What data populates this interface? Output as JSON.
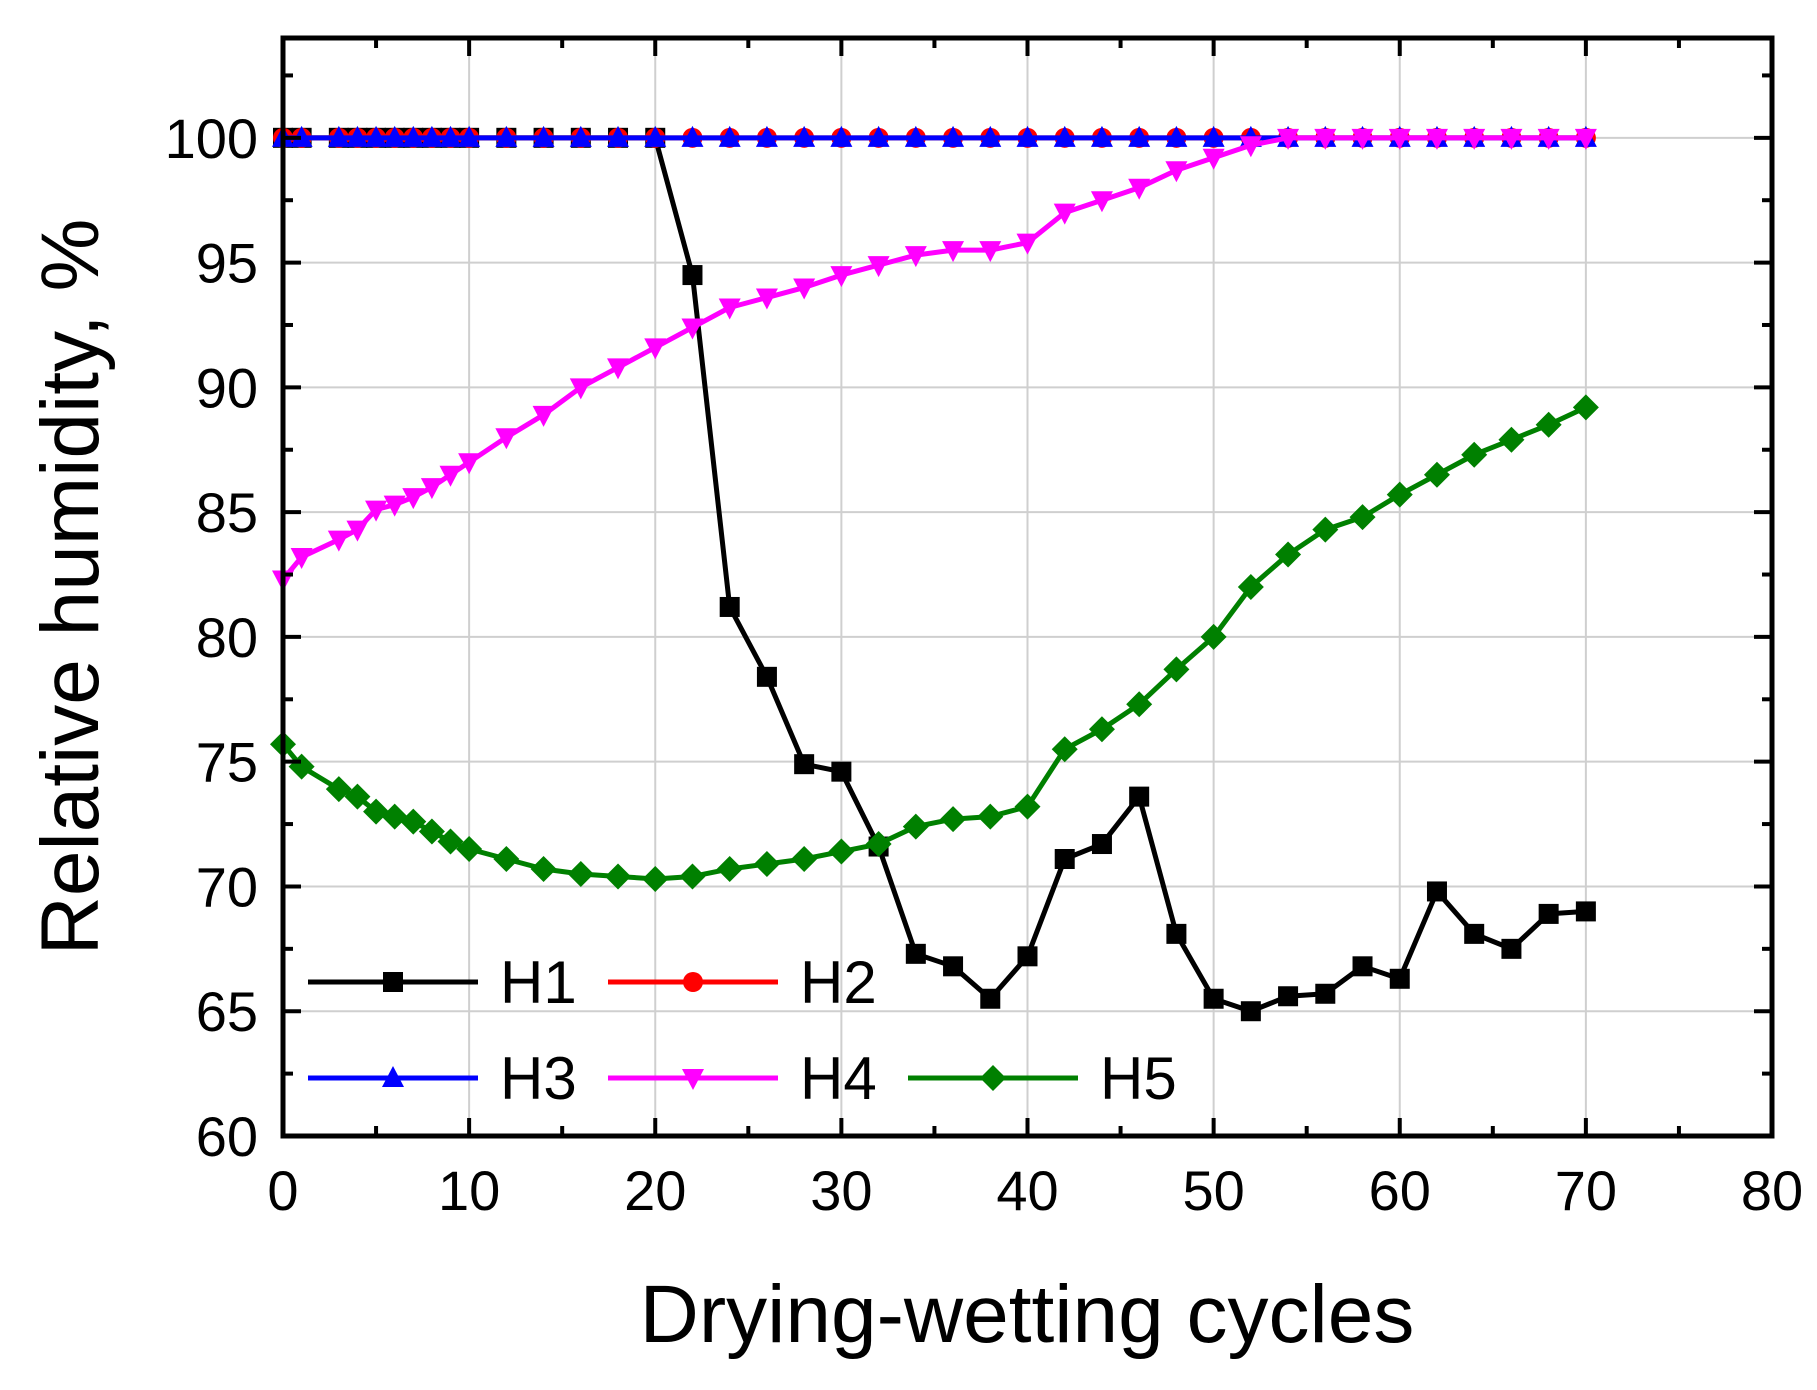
{
  "chart_data": {
    "type": "line",
    "xlabel": "Drying-wetting cycles",
    "ylabel": "Relative humidity, %",
    "xlim": [
      0,
      80
    ],
    "ylim": [
      60,
      104
    ],
    "xticks": [
      0,
      10,
      20,
      30,
      40,
      50,
      60,
      70,
      80
    ],
    "yticks": [
      60,
      65,
      70,
      75,
      80,
      85,
      90,
      95,
      100
    ],
    "xtick_labels": [
      "0",
      "10",
      "20",
      "30",
      "40",
      "50",
      "60",
      "70",
      "80"
    ],
    "ytick_labels": [
      "60",
      "65",
      "70",
      "75",
      "80",
      "85",
      "90",
      "95",
      "100"
    ],
    "grid": true,
    "legend_position": "bottom-left",
    "series": [
      {
        "name": "H1",
        "color": "#000000",
        "marker": "square",
        "points": [
          [
            0,
            100
          ],
          [
            1,
            100
          ],
          [
            3,
            100
          ],
          [
            4,
            100
          ],
          [
            5,
            100
          ],
          [
            6,
            100
          ],
          [
            7,
            100
          ],
          [
            8,
            100
          ],
          [
            9,
            100
          ],
          [
            10,
            100
          ],
          [
            12,
            100
          ],
          [
            14,
            100
          ],
          [
            16,
            100
          ],
          [
            18,
            100
          ],
          [
            20,
            100
          ],
          [
            22,
            94.5
          ],
          [
            24,
            81.2
          ],
          [
            26,
            78.4
          ],
          [
            28,
            74.9
          ],
          [
            30,
            74.6
          ],
          [
            32,
            71.6
          ],
          [
            34,
            67.3
          ],
          [
            36,
            66.8
          ],
          [
            38,
            65.5
          ],
          [
            40,
            67.2
          ],
          [
            42,
            71.1
          ],
          [
            44,
            71.7
          ],
          [
            46,
            73.6
          ],
          [
            48,
            68.1
          ],
          [
            50,
            65.5
          ],
          [
            52,
            65
          ],
          [
            54,
            65.6
          ],
          [
            56,
            65.7
          ],
          [
            58,
            66.8
          ],
          [
            60,
            66.3
          ],
          [
            62,
            69.8
          ],
          [
            64,
            68.1
          ],
          [
            66,
            67.5
          ],
          [
            68,
            68.9
          ],
          [
            70,
            69
          ]
        ]
      },
      {
        "name": "H2",
        "color": "#ff0000",
        "marker": "circle",
        "points": [
          [
            0,
            100
          ],
          [
            1,
            100
          ],
          [
            3,
            100
          ],
          [
            4,
            100
          ],
          [
            5,
            100
          ],
          [
            6,
            100
          ],
          [
            7,
            100
          ],
          [
            8,
            100
          ],
          [
            9,
            100
          ],
          [
            10,
            100
          ],
          [
            12,
            100
          ],
          [
            14,
            100
          ],
          [
            16,
            100
          ],
          [
            18,
            100
          ],
          [
            20,
            100
          ],
          [
            22,
            100
          ],
          [
            24,
            100
          ],
          [
            26,
            100
          ],
          [
            28,
            100
          ],
          [
            30,
            100
          ],
          [
            32,
            100
          ],
          [
            34,
            100
          ],
          [
            36,
            100
          ],
          [
            38,
            100
          ],
          [
            40,
            100
          ],
          [
            42,
            100
          ],
          [
            44,
            100
          ],
          [
            46,
            100
          ],
          [
            48,
            100
          ],
          [
            50,
            100
          ],
          [
            52,
            100
          ],
          [
            54,
            100
          ],
          [
            56,
            100
          ],
          [
            58,
            100
          ],
          [
            60,
            100
          ],
          [
            62,
            100
          ],
          [
            64,
            100
          ],
          [
            66,
            100
          ],
          [
            68,
            100
          ],
          [
            70,
            100
          ]
        ]
      },
      {
        "name": "H3",
        "color": "#0000ff",
        "marker": "triangle-up",
        "points": [
          [
            0,
            100
          ],
          [
            1,
            100
          ],
          [
            3,
            100
          ],
          [
            4,
            100
          ],
          [
            5,
            100
          ],
          [
            6,
            100
          ],
          [
            7,
            100
          ],
          [
            8,
            100
          ],
          [
            9,
            100
          ],
          [
            10,
            100
          ],
          [
            12,
            100
          ],
          [
            14,
            100
          ],
          [
            16,
            100
          ],
          [
            18,
            100
          ],
          [
            20,
            100
          ],
          [
            22,
            100
          ],
          [
            24,
            100
          ],
          [
            26,
            100
          ],
          [
            28,
            100
          ],
          [
            30,
            100
          ],
          [
            32,
            100
          ],
          [
            34,
            100
          ],
          [
            36,
            100
          ],
          [
            38,
            100
          ],
          [
            40,
            100
          ],
          [
            42,
            100
          ],
          [
            44,
            100
          ],
          [
            46,
            100
          ],
          [
            48,
            100
          ],
          [
            50,
            100
          ],
          [
            52,
            100
          ],
          [
            54,
            100
          ],
          [
            56,
            100
          ],
          [
            58,
            100
          ],
          [
            60,
            100
          ],
          [
            62,
            100
          ],
          [
            64,
            100
          ],
          [
            66,
            100
          ],
          [
            68,
            100
          ],
          [
            70,
            100
          ]
        ]
      },
      {
        "name": "H4",
        "color": "#ff00ff",
        "marker": "triangle-down",
        "points": [
          [
            0,
            82.3
          ],
          [
            1,
            83.2
          ],
          [
            3,
            83.9
          ],
          [
            4,
            84.3
          ],
          [
            5,
            85.1
          ],
          [
            6,
            85.3
          ],
          [
            7,
            85.6
          ],
          [
            8,
            86
          ],
          [
            9,
            86.5
          ],
          [
            10,
            87
          ],
          [
            12,
            88
          ],
          [
            14,
            88.9
          ],
          [
            16,
            90
          ],
          [
            18,
            90.8
          ],
          [
            20,
            91.6
          ],
          [
            22,
            92.4
          ],
          [
            24,
            93.2
          ],
          [
            26,
            93.6
          ],
          [
            28,
            94
          ],
          [
            30,
            94.5
          ],
          [
            32,
            94.9
          ],
          [
            34,
            95.3
          ],
          [
            36,
            95.5
          ],
          [
            38,
            95.5
          ],
          [
            40,
            95.8
          ],
          [
            42,
            97
          ],
          [
            44,
            97.5
          ],
          [
            46,
            98
          ],
          [
            48,
            98.7
          ],
          [
            50,
            99.2
          ],
          [
            52,
            99.7
          ],
          [
            54,
            100
          ],
          [
            56,
            100
          ],
          [
            58,
            100
          ],
          [
            60,
            100
          ],
          [
            62,
            100
          ],
          [
            64,
            100
          ],
          [
            66,
            100
          ],
          [
            68,
            100
          ],
          [
            70,
            100
          ]
        ]
      },
      {
        "name": "H5",
        "color": "#008000",
        "marker": "diamond",
        "points": [
          [
            0,
            75.7
          ],
          [
            1,
            74.8
          ],
          [
            3,
            73.9
          ],
          [
            4,
            73.6
          ],
          [
            5,
            73
          ],
          [
            6,
            72.8
          ],
          [
            7,
            72.6
          ],
          [
            8,
            72.2
          ],
          [
            9,
            71.8
          ],
          [
            10,
            71.5
          ],
          [
            12,
            71.1
          ],
          [
            14,
            70.7
          ],
          [
            16,
            70.5
          ],
          [
            18,
            70.4
          ],
          [
            20,
            70.3
          ],
          [
            22,
            70.4
          ],
          [
            24,
            70.7
          ],
          [
            26,
            70.9
          ],
          [
            28,
            71.1
          ],
          [
            30,
            71.4
          ],
          [
            32,
            71.7
          ],
          [
            34,
            72.4
          ],
          [
            36,
            72.7
          ],
          [
            38,
            72.8
          ],
          [
            40,
            73.2
          ],
          [
            42,
            75.5
          ],
          [
            44,
            76.3
          ],
          [
            46,
            77.3
          ],
          [
            48,
            78.7
          ],
          [
            50,
            80
          ],
          [
            52,
            82
          ],
          [
            54,
            83.3
          ],
          [
            56,
            84.3
          ],
          [
            58,
            84.8
          ],
          [
            60,
            85.7
          ],
          [
            62,
            86.5
          ],
          [
            64,
            87.3
          ],
          [
            66,
            87.9
          ],
          [
            68,
            88.5
          ],
          [
            70,
            89.2
          ]
        ]
      }
    ]
  }
}
